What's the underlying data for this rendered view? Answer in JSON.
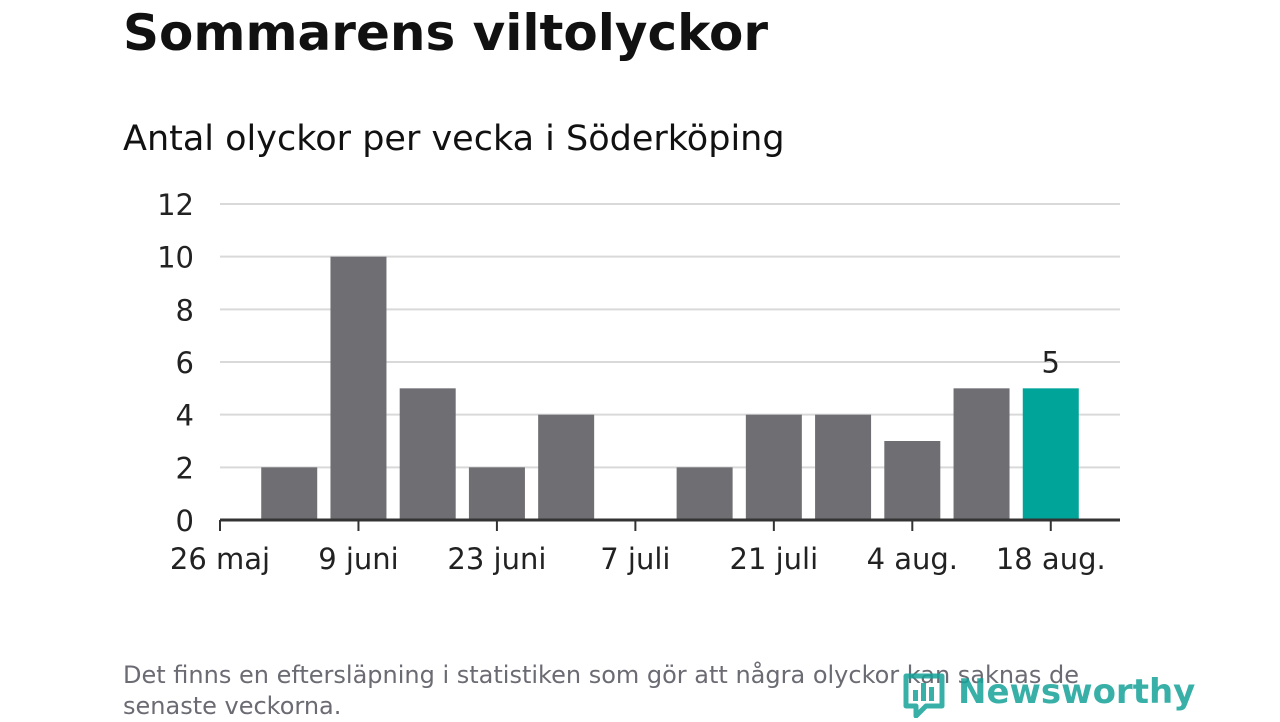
{
  "header": {
    "title": "Sommarens viltolyckor",
    "subtitle": "Antal olyckor per vecka i Söderköping"
  },
  "chart_data": {
    "type": "bar",
    "title": "Sommarens viltolyckor",
    "subtitle": "Antal olyckor per vecka i Söderköping",
    "xlabel": "",
    "ylabel": "",
    "ylim": [
      0,
      12
    ],
    "yticks": [
      0,
      2,
      4,
      6,
      8,
      10,
      12
    ],
    "xtick_labels": [
      "26 maj",
      "9 juni",
      "23 juni",
      "7 juli",
      "21 juli",
      "4 aug.",
      "18 aug."
    ],
    "weeks": [
      1,
      2,
      3,
      4,
      5,
      6,
      7,
      8,
      9,
      10,
      11,
      12
    ],
    "values": [
      2,
      10,
      5,
      2,
      4,
      0,
      2,
      4,
      4,
      3,
      5,
      5
    ],
    "highlight_index": 11,
    "highlight_label": "5",
    "grid": true,
    "legend": "none",
    "colors": {
      "bar": "#6f6e73",
      "highlight": "#00a499",
      "grid": "#d9d9d9",
      "axis": "#333333"
    }
  },
  "footer": {
    "note": "Det finns en eftersläpning i statistiken som gör att några olyckor kan saknas de senaste veckorna.",
    "brand": "Newsworthy",
    "brand_icon": "newsworthy-logo-icon",
    "brand_color": "#16a39a"
  }
}
